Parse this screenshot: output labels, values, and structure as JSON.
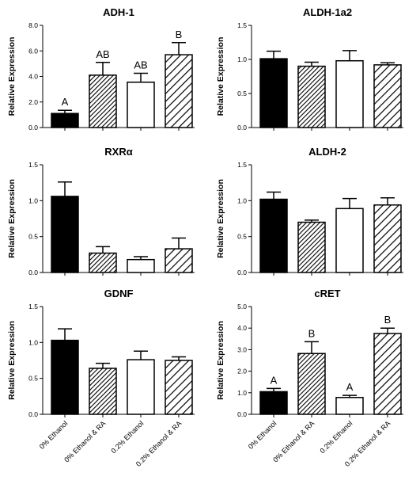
{
  "figure": {
    "ylabel": "Relative Expression",
    "categories": [
      "0% Ethanol",
      "0% Ethanol & RA",
      "0.2% Ethanol",
      "0.2% Ethanol & RA"
    ],
    "bar_styles": [
      "solid-black",
      "dense-hatch",
      "white",
      "wide-hatch"
    ]
  },
  "chart_data": [
    {
      "type": "bar",
      "title": "ADH-1",
      "ylabel": "Relative Expression",
      "ylim": [
        0,
        8
      ],
      "yticks": [
        "0.0",
        "2.0",
        "4.0",
        "6.0",
        "8.0"
      ],
      "yticks_values": [
        0,
        2,
        4,
        6,
        8
      ],
      "categories": [
        "0% Ethanol",
        "0% Ethanol & RA",
        "0.2% Ethanol",
        "0.2% Ethanol & RA"
      ],
      "values": [
        1.1,
        4.1,
        3.55,
        5.7
      ],
      "errors": [
        0.25,
        1.0,
        0.7,
        0.95
      ],
      "annotations": [
        "A",
        "AB",
        "AB",
        "B"
      ]
    },
    {
      "type": "bar",
      "title": "ALDH-1a2",
      "ylabel": "Relative Expression",
      "ylim": [
        0,
        1.5
      ],
      "yticks": [
        "0.0",
        "0.5",
        "1.0",
        "1.5"
      ],
      "yticks_values": [
        0,
        0.5,
        1.0,
        1.5
      ],
      "categories": [
        "0% Ethanol",
        "0% Ethanol & RA",
        "0.2% Ethanol",
        "0.2% Ethanol & RA"
      ],
      "values": [
        1.01,
        0.9,
        0.98,
        0.92
      ],
      "errors": [
        0.11,
        0.06,
        0.15,
        0.03
      ],
      "annotations": [
        "",
        "",
        "",
        ""
      ]
    },
    {
      "type": "bar",
      "title": "RXRα",
      "ylabel": "Relative Expression",
      "ylim": [
        0,
        1.5
      ],
      "yticks": [
        "0.0",
        "0.5",
        "1.0",
        "1.5"
      ],
      "yticks_values": [
        0,
        0.5,
        1.0,
        1.5
      ],
      "categories": [
        "0% Ethanol",
        "0% Ethanol & RA",
        "0.2% Ethanol",
        "0.2% Ethanol & RA"
      ],
      "values": [
        1.06,
        0.27,
        0.18,
        0.33
      ],
      "errors": [
        0.2,
        0.09,
        0.04,
        0.15
      ],
      "annotations": [
        "",
        "",
        "",
        ""
      ]
    },
    {
      "type": "bar",
      "title": "ALDH-2",
      "ylabel": "Relative Expression",
      "ylim": [
        0,
        1.5
      ],
      "yticks": [
        "0.0",
        "0.5",
        "1.0",
        "1.5"
      ],
      "yticks_values": [
        0,
        0.5,
        1.0,
        1.5
      ],
      "categories": [
        "0% Ethanol",
        "0% Ethanol & RA",
        "0.2% Ethanol",
        "0.2% Ethanol & RA"
      ],
      "values": [
        1.02,
        0.7,
        0.89,
        0.94
      ],
      "errors": [
        0.1,
        0.03,
        0.14,
        0.1
      ],
      "annotations": [
        "",
        "",
        "",
        ""
      ]
    },
    {
      "type": "bar",
      "title": "GDNF",
      "ylabel": "Relative Expression",
      "ylim": [
        0,
        1.5
      ],
      "yticks": [
        "0.0",
        "0.5",
        "1.0",
        "1.5"
      ],
      "yticks_values": [
        0,
        0.5,
        1.0,
        1.5
      ],
      "categories": [
        "0% Ethanol",
        "0% Ethanol & RA",
        "0.2% Ethanol",
        "0.2% Ethanol & RA"
      ],
      "values": [
        1.03,
        0.64,
        0.76,
        0.75
      ],
      "errors": [
        0.16,
        0.07,
        0.12,
        0.05
      ],
      "annotations": [
        "",
        "",
        "",
        ""
      ]
    },
    {
      "type": "bar",
      "title": "cRET",
      "ylabel": "Relative Expression",
      "ylim": [
        0,
        5
      ],
      "yticks": [
        "0.0",
        "1.0",
        "2.0",
        "3.0",
        "4.0",
        "5.0"
      ],
      "yticks_values": [
        0,
        1,
        2,
        3,
        4,
        5
      ],
      "categories": [
        "0% Ethanol",
        "0% Ethanol & RA",
        "0.2% Ethanol",
        "0.2% Ethanol & RA"
      ],
      "values": [
        1.05,
        2.82,
        0.78,
        3.75
      ],
      "errors": [
        0.15,
        0.55,
        0.1,
        0.25
      ],
      "annotations": [
        "A",
        "B",
        "A",
        "B"
      ]
    }
  ]
}
